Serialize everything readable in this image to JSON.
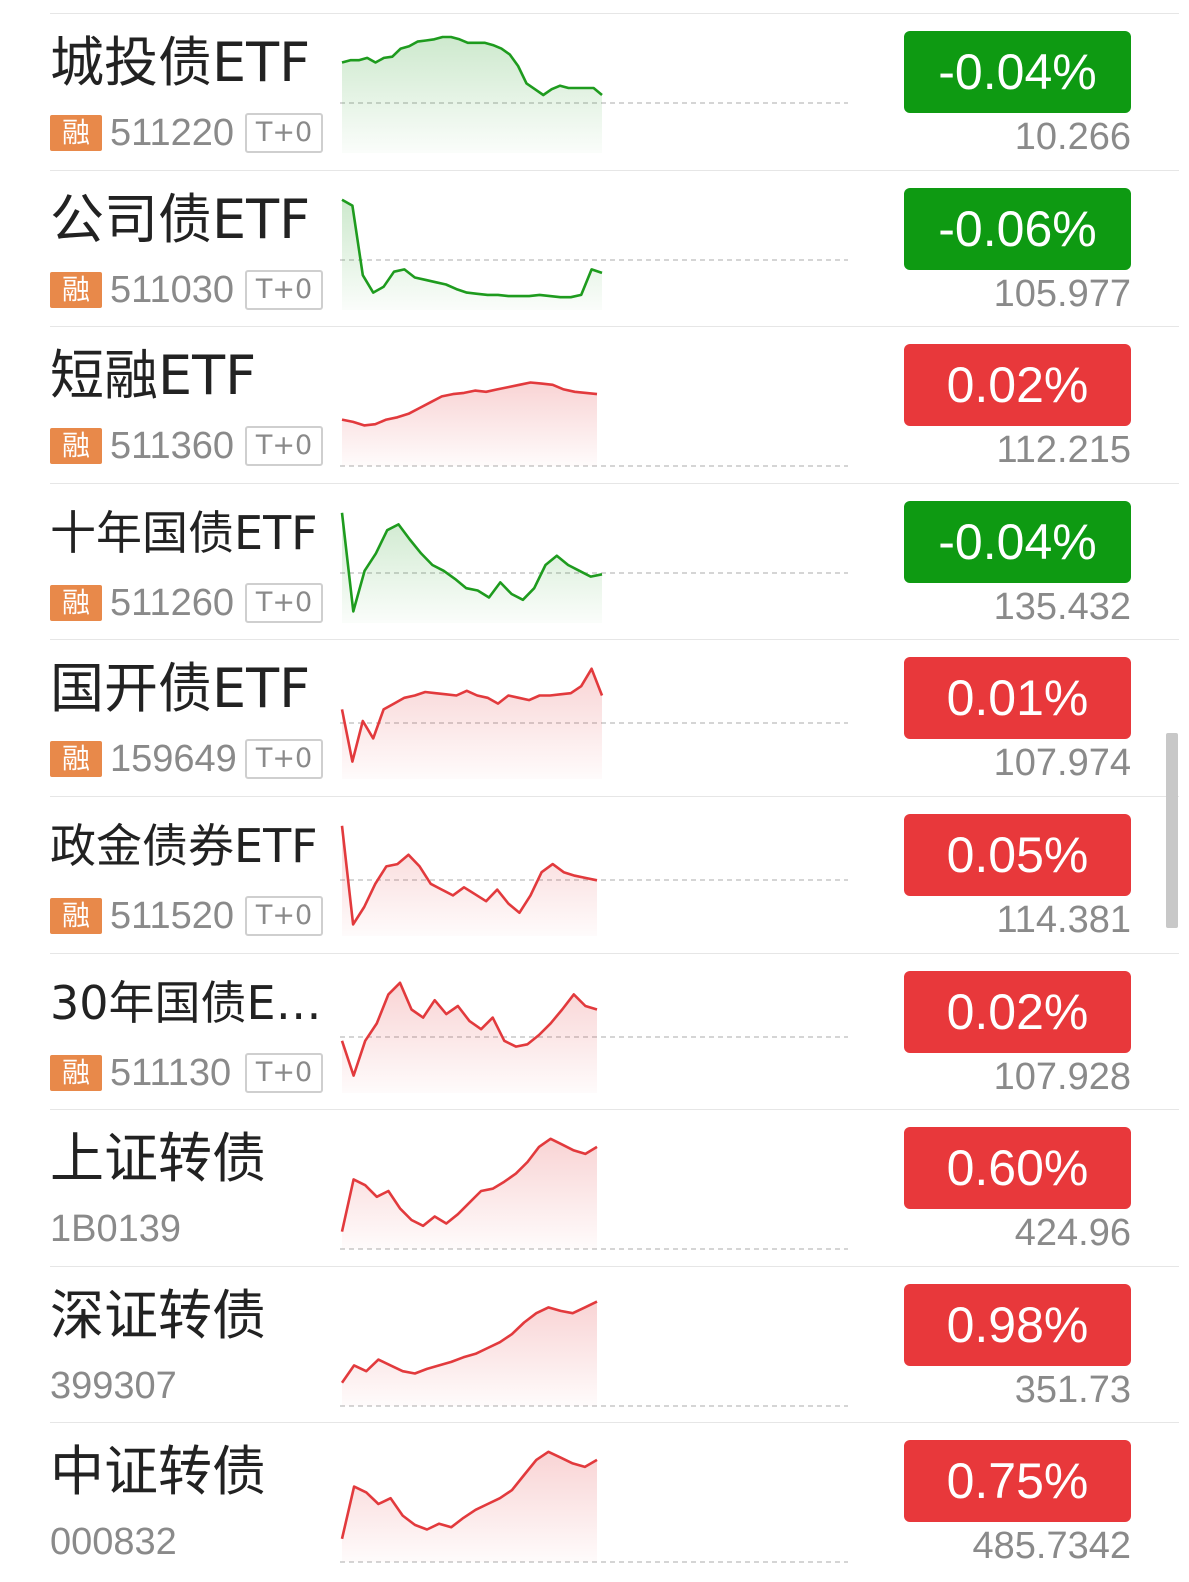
{
  "colors": {
    "up": "#e8383b",
    "down": "#0e9a12",
    "up_line": "#e23a3d",
    "down_line": "#1e9b1e",
    "rong_tag": "#e8894a"
  },
  "items": [
    {
      "name": "城投债ETF",
      "rong_tag": "融",
      "code": "511220",
      "trade_tag": "T+0",
      "change": "-0.04%",
      "price": "10.266",
      "direction": "down",
      "sparkline": [
        0.78,
        0.8,
        0.8,
        0.82,
        0.78,
        0.82,
        0.83,
        0.9,
        0.92,
        0.96,
        0.97,
        0.98,
        1.0,
        1.0,
        0.98,
        0.95,
        0.95,
        0.95,
        0.93,
        0.9,
        0.85,
        0.75,
        0.6,
        0.55,
        0.5,
        0.55,
        0.58,
        0.56,
        0.56,
        0.56,
        0.56,
        0.5
      ],
      "trend_fill": true
    },
    {
      "name": "公司债ETF",
      "rong_tag": "融",
      "code": "511030",
      "trade_tag": "T+0",
      "change": "-0.06%",
      "price": "105.977",
      "direction": "down",
      "sparkline": [
        0.95,
        0.9,
        0.3,
        0.15,
        0.2,
        0.33,
        0.35,
        0.28,
        0.26,
        0.24,
        0.22,
        0.18,
        0.15,
        0.14,
        0.13,
        0.13,
        0.12,
        0.12,
        0.12,
        0.13,
        0.12,
        0.11,
        0.11,
        0.13,
        0.35,
        0.32
      ],
      "trend_fill": true
    },
    {
      "name": "短融ETF",
      "rong_tag": "融",
      "code": "511360",
      "trade_tag": "T+0",
      "change": "0.02%",
      "price": "112.215",
      "direction": "up",
      "sparkline": [
        0.4,
        0.38,
        0.35,
        0.36,
        0.4,
        0.42,
        0.45,
        0.5,
        0.55,
        0.6,
        0.62,
        0.63,
        0.65,
        0.64,
        0.66,
        0.68,
        0.7,
        0.72,
        0.71,
        0.7,
        0.66,
        0.64,
        0.63,
        0.62
      ],
      "trend_fill": true
    },
    {
      "name": "十年国债ETF",
      "rong_tag": "融",
      "code": "511260",
      "trade_tag": "T+0",
      "change": "-0.04%",
      "price": "135.432",
      "direction": "down",
      "sparkline": [
        0.95,
        0.1,
        0.45,
        0.6,
        0.8,
        0.85,
        0.72,
        0.6,
        0.5,
        0.45,
        0.38,
        0.3,
        0.28,
        0.22,
        0.35,
        0.25,
        0.2,
        0.3,
        0.5,
        0.58,
        0.5,
        0.45,
        0.4,
        0.42
      ],
      "trend_fill": true
    },
    {
      "name": "国开债ETF",
      "rong_tag": "融",
      "code": "159649",
      "trade_tag": "T+0",
      "change": "0.01%",
      "price": "107.974",
      "direction": "up",
      "sparkline": [
        0.6,
        0.15,
        0.5,
        0.35,
        0.6,
        0.65,
        0.7,
        0.72,
        0.75,
        0.74,
        0.73,
        0.72,
        0.76,
        0.72,
        0.7,
        0.65,
        0.72,
        0.7,
        0.68,
        0.72,
        0.72,
        0.73,
        0.74,
        0.8,
        0.95,
        0.72
      ],
      "trend_fill": true
    },
    {
      "name": "政金债券ETF",
      "rong_tag": "融",
      "code": "511520",
      "trade_tag": "T+0",
      "change": "0.05%",
      "price": "114.381",
      "direction": "up",
      "sparkline": [
        0.95,
        0.1,
        0.25,
        0.45,
        0.6,
        0.62,
        0.7,
        0.6,
        0.45,
        0.4,
        0.35,
        0.42,
        0.36,
        0.3,
        0.4,
        0.28,
        0.2,
        0.35,
        0.55,
        0.62,
        0.55,
        0.52,
        0.5,
        0.48
      ],
      "trend_fill": true
    },
    {
      "name": "30年国债ET...",
      "rong_tag": "融",
      "code": "511130",
      "trade_tag": "T+0",
      "change": "0.02%",
      "price": "107.928",
      "direction": "up",
      "sparkline": [
        0.45,
        0.15,
        0.45,
        0.6,
        0.85,
        0.95,
        0.72,
        0.65,
        0.8,
        0.68,
        0.75,
        0.62,
        0.55,
        0.65,
        0.45,
        0.4,
        0.42,
        0.5,
        0.6,
        0.72,
        0.85,
        0.75,
        0.72
      ],
      "trend_fill": true
    },
    {
      "name": "上证转债",
      "rong_tag": "",
      "code": "1B0139",
      "trade_tag": "",
      "change": "0.60%",
      "price": "424.96",
      "direction": "up",
      "sparkline": [
        0.15,
        0.6,
        0.55,
        0.45,
        0.5,
        0.35,
        0.25,
        0.2,
        0.28,
        0.22,
        0.3,
        0.4,
        0.5,
        0.52,
        0.58,
        0.65,
        0.75,
        0.88,
        0.95,
        0.9,
        0.85,
        0.82,
        0.88
      ],
      "trend_fill": true
    },
    {
      "name": "深证转债",
      "rong_tag": "",
      "code": "399307",
      "trade_tag": "",
      "change": "0.98%",
      "price": "351.73",
      "direction": "up",
      "sparkline": [
        0.2,
        0.35,
        0.3,
        0.4,
        0.35,
        0.3,
        0.28,
        0.32,
        0.35,
        0.38,
        0.42,
        0.45,
        0.5,
        0.55,
        0.62,
        0.72,
        0.8,
        0.85,
        0.82,
        0.8,
        0.85,
        0.9
      ],
      "trend_fill": true
    },
    {
      "name": "中证转债",
      "rong_tag": "",
      "code": "000832",
      "trade_tag": "",
      "change": "0.75%",
      "price": "485.7342",
      "direction": "up",
      "sparkline": [
        0.2,
        0.65,
        0.6,
        0.5,
        0.55,
        0.4,
        0.32,
        0.28,
        0.33,
        0.3,
        0.38,
        0.45,
        0.5,
        0.55,
        0.62,
        0.75,
        0.88,
        0.95,
        0.9,
        0.85,
        0.82,
        0.88
      ],
      "trend_fill": true
    }
  ]
}
